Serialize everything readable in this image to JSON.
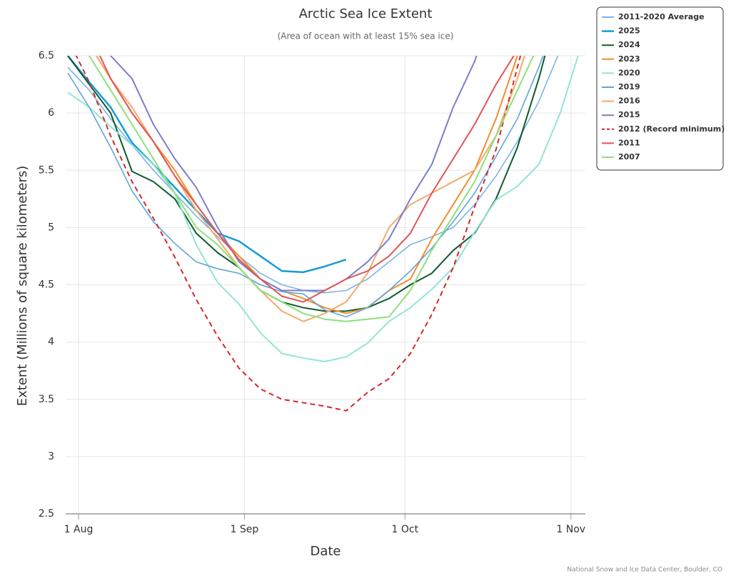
{
  "chart_data": {
    "type": "line",
    "title": "Arctic Sea Ice Extent",
    "subtitle": "(Area of ocean with at least 15% sea ice)",
    "x_label": "Date",
    "y_label": "Extent (Millions of square kilometers)",
    "credit": "National Snow and Ice Data Center, Boulder, CO",
    "x": [
      -2,
      2,
      6,
      10,
      14,
      18,
      22,
      26,
      30,
      34,
      38,
      42,
      46,
      50,
      54,
      58,
      62,
      66,
      70,
      74,
      78,
      82,
      86,
      90,
      94
    ],
    "xlim": [
      -2.4,
      94.7
    ],
    "xticks": [
      {
        "value": 0,
        "label": "1 Aug"
      },
      {
        "value": 31,
        "label": "1 Sep"
      },
      {
        "value": 61,
        "label": "1 Oct"
      },
      {
        "value": 92,
        "label": "1 Nov"
      }
    ],
    "ylim": [
      2.5,
      6.5
    ],
    "yticks": [
      2.5,
      3,
      3.5,
      4,
      4.5,
      5,
      5.5,
      6,
      6.5
    ],
    "grid": true,
    "legend": "upper right",
    "series": [
      {
        "name": "2011-2020 Average",
        "color": "#7cb5e3",
        "values": [
          6.4,
          6.2,
          5.95,
          5.72,
          5.5,
          5.3,
          5.1,
          4.92,
          4.75,
          4.6,
          4.5,
          4.45,
          4.43,
          4.45,
          4.55,
          4.7,
          4.85,
          4.92,
          5.0,
          5.2,
          5.45,
          5.75,
          6.1,
          6.55,
          7.0
        ]
      },
      {
        "name": "2025",
        "color": "#1b9ad6",
        "width": 2.5,
        "values": [
          6.5,
          6.27,
          6.05,
          5.74,
          5.55,
          5.35,
          5.15,
          4.95,
          4.88,
          4.75,
          4.62,
          4.61,
          4.66,
          4.72,
          null,
          null,
          null,
          null,
          null,
          null,
          null,
          null,
          null,
          null,
          null
        ]
      },
      {
        "name": "2024",
        "color": "#0d5c2e",
        "width": 2,
        "values": [
          6.5,
          6.25,
          6.0,
          5.49,
          5.4,
          5.25,
          4.95,
          4.78,
          4.65,
          4.45,
          4.35,
          4.3,
          4.27,
          4.27,
          4.3,
          4.38,
          4.5,
          4.6,
          4.8,
          4.95,
          5.25,
          5.7,
          6.3,
          7.0,
          null
        ]
      },
      {
        "name": "2023",
        "color": "#f28e2b",
        "width": 2,
        "values": [
          6.9,
          6.6,
          6.3,
          6.0,
          5.75,
          5.5,
          5.2,
          4.95,
          4.75,
          4.55,
          4.45,
          4.38,
          4.3,
          4.25,
          4.3,
          4.45,
          4.55,
          4.9,
          5.2,
          5.5,
          5.95,
          6.5,
          7.1,
          null,
          null
        ]
      },
      {
        "name": "2020",
        "color": "#93e4d6",
        "width": 2,
        "values": [
          6.18,
          6.05,
          5.88,
          5.72,
          5.55,
          5.3,
          4.85,
          4.52,
          4.33,
          4.08,
          3.9,
          3.86,
          3.83,
          3.87,
          3.99,
          4.18,
          4.3,
          4.46,
          4.65,
          4.96,
          5.24,
          5.36,
          5.55,
          6.0,
          6.6
        ]
      },
      {
        "name": "2019",
        "color": "#5fa6d9",
        "values": [
          6.35,
          6.05,
          5.7,
          5.32,
          5.05,
          4.86,
          4.7,
          4.64,
          4.6,
          4.5,
          4.44,
          4.42,
          4.28,
          4.22,
          4.3,
          4.45,
          4.62,
          4.82,
          5.05,
          5.3,
          5.62,
          5.95,
          6.4,
          6.9,
          null
        ]
      },
      {
        "name": "2016",
        "color": "#f4a96a",
        "width": 2,
        "values": [
          6.9,
          6.6,
          6.3,
          6.05,
          5.75,
          5.45,
          5.15,
          4.9,
          4.65,
          4.45,
          4.27,
          4.18,
          4.25,
          4.35,
          4.6,
          5.0,
          5.2,
          5.3,
          5.4,
          5.5,
          5.8,
          6.3,
          6.9,
          null,
          null
        ]
      },
      {
        "name": "2015",
        "color": "#7b7ec9",
        "width": 2,
        "values": [
          7.0,
          6.7,
          6.5,
          6.3,
          5.9,
          5.6,
          5.35,
          5.0,
          4.7,
          4.55,
          4.45,
          4.45,
          4.45,
          4.55,
          4.7,
          4.9,
          5.25,
          5.55,
          6.05,
          6.45,
          7.0,
          null,
          null,
          null,
          null
        ]
      },
      {
        "name": "2012 (Record minimum)",
        "color": "#d62728",
        "dashed": true,
        "width": 2,
        "values": [
          6.65,
          6.27,
          5.8,
          5.4,
          5.08,
          4.74,
          4.37,
          4.05,
          3.77,
          3.59,
          3.5,
          3.47,
          3.44,
          3.4,
          3.56,
          3.68,
          3.9,
          4.24,
          4.65,
          5.18,
          5.68,
          6.4,
          7.1,
          null,
          null
        ]
      },
      {
        "name": "2011",
        "color": "#e05555",
        "width": 2,
        "values": [
          7.0,
          6.7,
          6.3,
          6.0,
          5.75,
          5.45,
          5.2,
          4.95,
          4.72,
          4.55,
          4.4,
          4.35,
          4.45,
          4.55,
          4.62,
          4.75,
          4.95,
          5.3,
          5.6,
          5.9,
          6.25,
          6.55,
          7.0,
          null,
          null
        ]
      },
      {
        "name": "2007",
        "color": "#8ee07a",
        "width": 2,
        "values": [
          6.8,
          6.5,
          6.2,
          5.9,
          5.6,
          5.3,
          5.0,
          4.85,
          4.65,
          4.45,
          4.35,
          4.25,
          4.2,
          4.18,
          4.2,
          4.22,
          4.45,
          4.8,
          5.1,
          5.4,
          5.8,
          6.2,
          6.6,
          null,
          null
        ]
      }
    ]
  }
}
